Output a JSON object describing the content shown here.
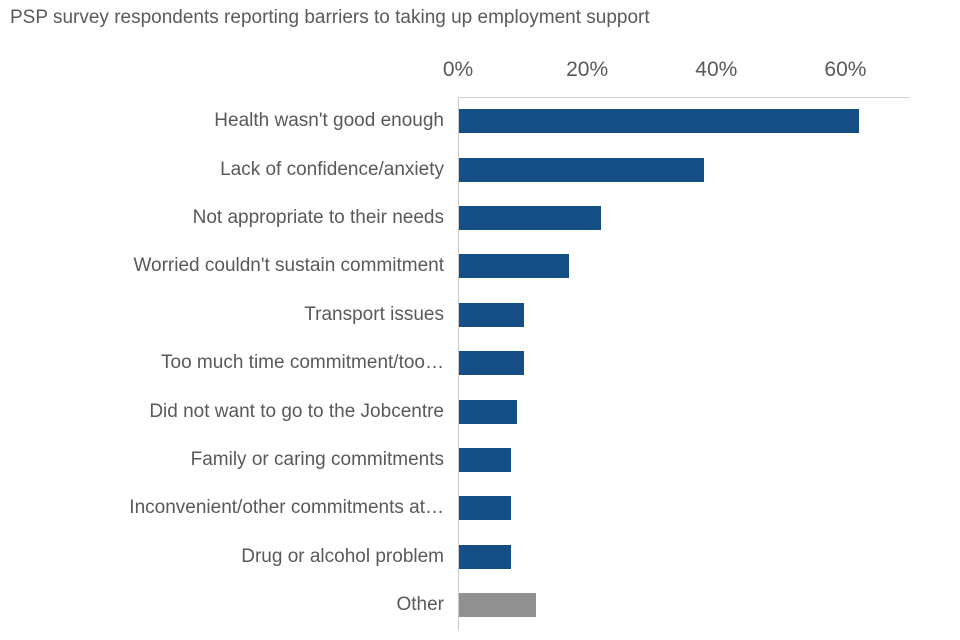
{
  "title": "PSP survey respondents reporting barriers to taking up employment support",
  "colors": {
    "bar_blue": "#164f86",
    "bar_gray": "#919191",
    "axis_line": "#d2d2d2",
    "text_gray": "#595959"
  },
  "chart_data": {
    "type": "bar",
    "orientation": "horizontal",
    "title": "PSP survey respondents reporting barriers to taking up employment support",
    "xlabel": "",
    "ylabel": "",
    "xlim": [
      0,
      70
    ],
    "grid": "off",
    "legend": "none",
    "x_ticks": [
      "0%",
      "20%",
      "40%",
      "60%"
    ],
    "x_tick_values": [
      0,
      20,
      40,
      60
    ],
    "categories": [
      "Health wasn't good enough",
      "Lack of confidence/anxiety",
      "Not appropriate to their needs",
      "Worried couldn't sustain commitment",
      "Transport issues",
      "Too much time commitment/too…",
      "Did not want to go to the Jobcentre",
      "Family or caring commitments",
      "Inconvenient/other commitments at…",
      "Drug or alcohol problem",
      "Other"
    ],
    "values": [
      62,
      38,
      22,
      17,
      10,
      10,
      9,
      8,
      8,
      8,
      12
    ],
    "bar_colors": [
      "#164f86",
      "#164f86",
      "#164f86",
      "#164f86",
      "#164f86",
      "#164f86",
      "#164f86",
      "#164f86",
      "#164f86",
      "#164f86",
      "#919191"
    ]
  }
}
